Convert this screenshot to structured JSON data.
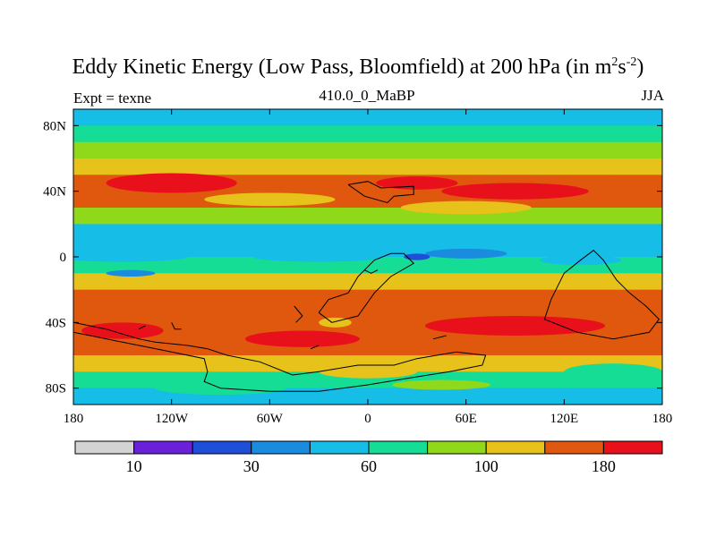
{
  "header": {
    "title": "Eddy Kinetic Energy (Low Pass, Bloomfield) at 200 hPa (in m",
    "title_sup1": "2",
    "title_mid": "s",
    "title_sup2": "-2",
    "title_end": ")",
    "left_label": "Expt = texne",
    "center_label": "410.0_0_MaBP",
    "right_label": "JJA"
  },
  "chart_data": {
    "type": "heatmap",
    "title": "Eddy Kinetic Energy (Low Pass, Bloomfield) at 200 hPa (in m^2 s^-2)",
    "variable": "Eddy Kinetic Energy",
    "units": "m2 s-2",
    "level": "200 hPa",
    "season": "JJA",
    "experiment": "texne",
    "time": "410.0_0_MaBP",
    "x_ticks": [
      "180",
      "120W",
      "60W",
      "0",
      "60E",
      "120E",
      "180"
    ],
    "y_ticks": [
      "80N",
      "40N",
      "0",
      "40S",
      "80S"
    ],
    "xlim": [
      -180,
      180
    ],
    "ylim": [
      -90,
      90
    ],
    "colorbar": {
      "levels": [
        10,
        20,
        30,
        45,
        60,
        80,
        100,
        140,
        180
      ],
      "labels": [
        "10",
        "30",
        "60",
        "100",
        "180"
      ],
      "colors": [
        "#d3d3d3",
        "#6a20d8",
        "#1f4fd8",
        "#1a8ce0",
        "#16bde6",
        "#15dd96",
        "#8fd81a",
        "#e6c21a",
        "#e0580e",
        "#e8101a"
      ]
    },
    "latitude_profile": [
      {
        "lat": 88,
        "value": 40
      },
      {
        "lat": 80,
        "value": 65
      },
      {
        "lat": 70,
        "value": 80
      },
      {
        "lat": 60,
        "value": 110
      },
      {
        "lat": 50,
        "value": 140
      },
      {
        "lat": 40,
        "value": 175
      },
      {
        "lat": 30,
        "value": 120
      },
      {
        "lat": 20,
        "value": 65
      },
      {
        "lat": 10,
        "value": 50
      },
      {
        "lat": 0,
        "value": 60
      },
      {
        "lat": -10,
        "value": 80
      },
      {
        "lat": -20,
        "value": 120
      },
      {
        "lat": -30,
        "value": 160
      },
      {
        "lat": -40,
        "value": 185
      },
      {
        "lat": -50,
        "value": 170
      },
      {
        "lat": -60,
        "value": 120
      },
      {
        "lat": -70,
        "value": 80
      },
      {
        "lat": -80,
        "value": 60
      },
      {
        "lat": -88,
        "value": 45
      }
    ]
  }
}
